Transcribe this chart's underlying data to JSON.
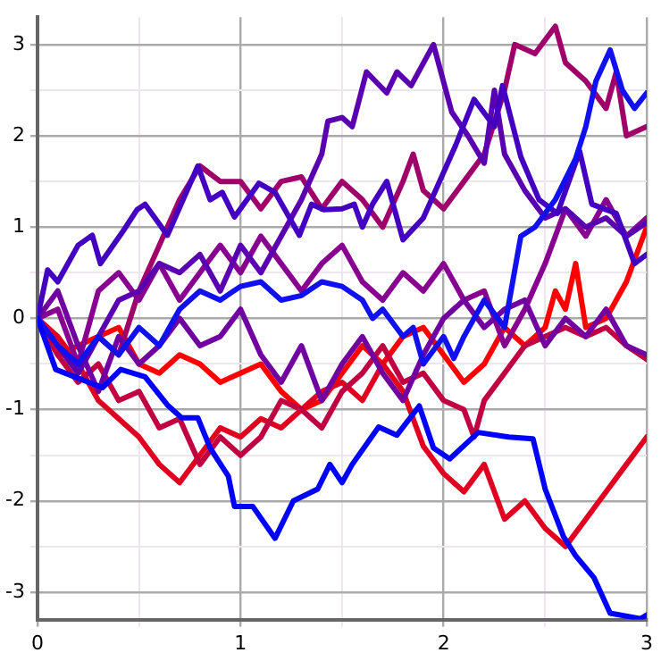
{
  "chart_data": {
    "type": "line",
    "xlim": [
      0,
      3
    ],
    "ylim": [
      -3.3,
      3.3
    ],
    "xticks": [
      0,
      {
        "value": 0.5,
        "label": null
      },
      1,
      {
        "value": 1.5,
        "label": null
      },
      2,
      {
        "value": 2.5,
        "label": null
      },
      3
    ],
    "yticks": [
      -3,
      {
        "value": -2.5,
        "label": null
      },
      -2,
      {
        "value": -1.5,
        "label": null
      },
      -1,
      {
        "value": -0.5,
        "label": null
      },
      0,
      {
        "value": 0.5,
        "label": null
      },
      1,
      {
        "value": 1.5,
        "label": null
      },
      2,
      {
        "value": 2.5,
        "label": null
      },
      3
    ],
    "grid": true,
    "legend": false,
    "marker": "none",
    "line_style": "solid",
    "series": [
      {
        "color": "#0000ff",
        "x": [
          0,
          0.09,
          0.32,
          0.41,
          0.53,
          0.64,
          0.71,
          0.79,
          0.85,
          0.94,
          0.97,
          1.06,
          1.17,
          1.26,
          1.38,
          1.44,
          1.5,
          1.55,
          1.68,
          1.77,
          1.88,
          1.95,
          2.03,
          2.17,
          2.32,
          2.44,
          2.5,
          2.59,
          2.65,
          2.74,
          2.82,
          2.97,
          3.0
        ],
        "values": [
          0,
          -0.56,
          -0.76,
          -0.56,
          -0.64,
          -0.95,
          -1.09,
          -1.09,
          -1.42,
          -1.73,
          -2.06,
          -2.06,
          -2.41,
          -2,
          -1.87,
          -1.6,
          -1.8,
          -1.6,
          -1.19,
          -1.28,
          -0.96,
          -1.42,
          -1.54,
          -1.25,
          -1.3,
          -1.32,
          -1.87,
          -2.39,
          -2.6,
          -2.84,
          -3.23,
          -3.29,
          -3.25
        ]
      },
      {
        "color": "#1010f0",
        "x": [
          0,
          0.1,
          0.2,
          0.3,
          0.4,
          0.5,
          0.6,
          0.7,
          0.8,
          0.9,
          1.0,
          1.1,
          1.2,
          1.3,
          1.4,
          1.5,
          1.6,
          1.65,
          1.7,
          1.8,
          1.85,
          1.9,
          2.0,
          2.05,
          2.1,
          2.2,
          2.3,
          2.38,
          2.45,
          2.55,
          2.65,
          2.7,
          2.75,
          2.82,
          2.88,
          2.94,
          3.0
        ],
        "values": [
          0,
          -0.3,
          -0.5,
          -0.2,
          -0.4,
          -0.1,
          -0.3,
          0.1,
          0.3,
          0.2,
          0.35,
          0.4,
          0.2,
          0.25,
          0.4,
          0.35,
          0.2,
          0,
          0.1,
          -0.2,
          -0.1,
          -0.5,
          -0.2,
          -0.44,
          -0.2,
          0.2,
          -0.1,
          0.9,
          1,
          1.3,
          1.75,
          2.1,
          2.6,
          2.94,
          2.5,
          2.3,
          2.47
        ]
      },
      {
        "color": "#4400c0",
        "x": [
          0,
          0.05,
          0.1,
          0.2,
          0.27,
          0.31,
          0.42,
          0.49,
          0.53,
          0.64,
          0.79,
          0.85,
          0.91,
          0.97,
          1.09,
          1.17,
          1.29,
          1.35,
          1.41,
          1.5,
          1.56,
          1.6,
          1.65,
          1.72,
          1.8,
          1.9,
          2.06,
          2.15,
          2.25,
          2.29,
          2.38,
          2.47,
          2.56,
          2.67,
          2.73,
          2.85,
          2.94,
          3.0
        ],
        "values": [
          0,
          0.53,
          0.4,
          0.8,
          0.91,
          0.6,
          0.95,
          1.19,
          1.25,
          0.91,
          1.67,
          1.3,
          1.38,
          1.11,
          1.48,
          1.38,
          0.91,
          1.25,
          1.19,
          1.2,
          1.25,
          1,
          1.25,
          1.5,
          0.86,
          1.1,
          1.9,
          2.4,
          2.1,
          2.55,
          1.77,
          1.3,
          1.15,
          1.83,
          1.25,
          1.15,
          0.6,
          0.7
        ]
      },
      {
        "color": "#5a00b0",
        "x": [
          0,
          0.1,
          0.2,
          0.3,
          0.4,
          0.5,
          0.6,
          0.7,
          0.8,
          0.9,
          1.0,
          1.1,
          1.2,
          1.3,
          1.4,
          1.43,
          1.5,
          1.55,
          1.62,
          1.72,
          1.77,
          1.84,
          1.95,
          2.04,
          2.12,
          2.2,
          2.25,
          2.3,
          2.4,
          2.5,
          2.6,
          2.7,
          2.8,
          2.9,
          3.0
        ],
        "values": [
          0,
          -0.3,
          -0.6,
          -0.2,
          0.2,
          0.3,
          0.6,
          0.5,
          0.7,
          0.3,
          0.8,
          0.5,
          0.9,
          1.3,
          1.8,
          2.16,
          2.2,
          2.1,
          2.7,
          2.47,
          2.7,
          2.55,
          3,
          2.26,
          2,
          1.7,
          2.5,
          1.8,
          1.4,
          1.1,
          1.2,
          1,
          1.1,
          0.9,
          1.05
        ]
      },
      {
        "color": "#7000a0",
        "x": [
          0,
          0.1,
          0.2,
          0.3,
          0.4,
          0.5,
          0.6,
          0.7,
          0.8,
          0.9,
          1.0,
          1.1,
          1.2,
          1.3,
          1.4,
          1.5,
          1.6,
          1.7,
          1.8,
          1.9,
          2.0,
          2.1,
          2.2,
          2.3,
          2.4,
          2.5,
          2.6,
          2.7,
          2.8,
          2.9,
          3.0
        ],
        "values": [
          0,
          0.3,
          -0.3,
          -0.8,
          -0.2,
          -0.5,
          -0.3,
          0,
          -0.3,
          -0.2,
          0.1,
          -0.4,
          -0.7,
          -0.3,
          -0.9,
          -0.5,
          -0.2,
          -0.6,
          -0.9,
          -0.4,
          0,
          0.2,
          -0.1,
          0.1,
          0.2,
          -0.3,
          0,
          -0.2,
          0.1,
          -0.3,
          -0.4
        ]
      },
      {
        "color": "#880090",
        "x": [
          0,
          0.1,
          0.2,
          0.3,
          0.4,
          0.5,
          0.6,
          0.7,
          0.8,
          0.9,
          1.0,
          1.1,
          1.2,
          1.3,
          1.4,
          1.5,
          1.6,
          1.7,
          1.8,
          1.9,
          2.0,
          2.1,
          2.2,
          2.3,
          2.4,
          2.5,
          2.6,
          2.7,
          2.8,
          2.9,
          3.0
        ],
        "values": [
          0,
          0.1,
          -0.5,
          0.3,
          0.5,
          0.2,
          0.6,
          0.2,
          0.5,
          0.8,
          0.5,
          0.9,
          0.6,
          0.3,
          0.6,
          0.8,
          0.4,
          0.2,
          0.5,
          0.3,
          0.6,
          0.2,
          0.3,
          -0.3,
          0.1,
          0.6,
          1.2,
          0.9,
          1.3,
          0.9,
          1.1
        ]
      },
      {
        "color": "#a0006a",
        "x": [
          0,
          0.1,
          0.2,
          0.3,
          0.4,
          0.5,
          0.6,
          0.7,
          0.8,
          0.9,
          1.0,
          1.1,
          1.2,
          1.3,
          1.4,
          1.5,
          1.6,
          1.7,
          1.8,
          1.85,
          1.9,
          2.0,
          2.1,
          2.2,
          2.3,
          2.35,
          2.45,
          2.5,
          2.55,
          2.6,
          2.7,
          2.8,
          2.85,
          2.9,
          3.0
        ],
        "values": [
          0,
          -0.3,
          -0.6,
          -0.2,
          -0.4,
          0.3,
          0.8,
          1.3,
          1.67,
          1.5,
          1.5,
          1.2,
          1.5,
          1.55,
          1.2,
          1.5,
          1.3,
          1,
          1.5,
          1.8,
          1.4,
          1.2,
          1.5,
          1.8,
          2.5,
          3,
          2.9,
          3.05,
          3.2,
          2.8,
          2.6,
          2.3,
          2.7,
          2,
          2.1
        ]
      },
      {
        "color": "#c00040",
        "x": [
          0,
          0.1,
          0.2,
          0.3,
          0.4,
          0.5,
          0.6,
          0.7,
          0.8,
          0.9,
          1.0,
          1.1,
          1.2,
          1.3,
          1.4,
          1.5,
          1.6,
          1.7,
          1.8,
          1.9,
          2.0,
          2.1,
          2.15,
          2.2,
          2.3,
          2.4,
          2.5,
          2.6,
          2.7,
          2.8,
          2.9,
          3.0
        ],
        "values": [
          0,
          -0.4,
          -0.7,
          -0.5,
          -0.9,
          -0.8,
          -1.2,
          -1.1,
          -1.6,
          -1.3,
          -1.5,
          -1.3,
          -0.9,
          -1,
          -1.2,
          -0.8,
          -0.6,
          -0.3,
          -0.7,
          -0.6,
          -0.9,
          -1,
          -1.3,
          -0.9,
          -0.6,
          -0.3,
          -0.2,
          -0.1,
          -0.2,
          -0.1,
          -0.3,
          -0.45
        ]
      },
      {
        "color": "#e00020",
        "x": [
          0,
          0.1,
          0.2,
          0.3,
          0.4,
          0.5,
          0.6,
          0.7,
          0.8,
          0.9,
          1.0,
          1.1,
          1.2,
          1.3,
          1.4,
          1.5,
          1.6,
          1.7,
          1.8,
          1.9,
          2.0,
          2.1,
          2.2,
          2.3,
          2.4,
          2.5,
          2.6,
          2.7,
          2.8,
          2.9,
          3.0
        ],
        "values": [
          0,
          -0.2,
          -0.5,
          -0.9,
          -1.1,
          -1.3,
          -1.6,
          -1.8,
          -1.5,
          -1.2,
          -1.3,
          -1.1,
          -1.2,
          -1,
          -0.8,
          -0.7,
          -0.9,
          -0.5,
          -0.8,
          -1.4,
          -1.7,
          -1.9,
          -1.6,
          -2.2,
          -2,
          -2.3,
          -2.5,
          -2.2,
          -1.9,
          -1.6,
          -1.3
        ]
      },
      {
        "color": "#ff0000",
        "x": [
          0,
          0.1,
          0.2,
          0.3,
          0.4,
          0.5,
          0.6,
          0.7,
          0.8,
          0.9,
          1.0,
          1.1,
          1.2,
          1.3,
          1.4,
          1.5,
          1.6,
          1.7,
          1.8,
          1.9,
          2.0,
          2.1,
          2.2,
          2.3,
          2.4,
          2.5,
          2.55,
          2.6,
          2.65,
          2.7,
          2.8,
          2.9,
          3.0
        ],
        "values": [
          0,
          -0.4,
          -0.3,
          -0.2,
          -0.1,
          -0.5,
          -0.6,
          -0.4,
          -0.5,
          -0.7,
          -0.6,
          -0.5,
          -0.8,
          -1,
          -0.9,
          -0.6,
          -0.3,
          -0.5,
          -0.2,
          -0.1,
          -0.4,
          -0.7,
          -0.5,
          -0.1,
          -0.3,
          -0.1,
          0.3,
          0.1,
          0.6,
          -0.1,
          0,
          0.4,
          1
        ]
      }
    ]
  }
}
